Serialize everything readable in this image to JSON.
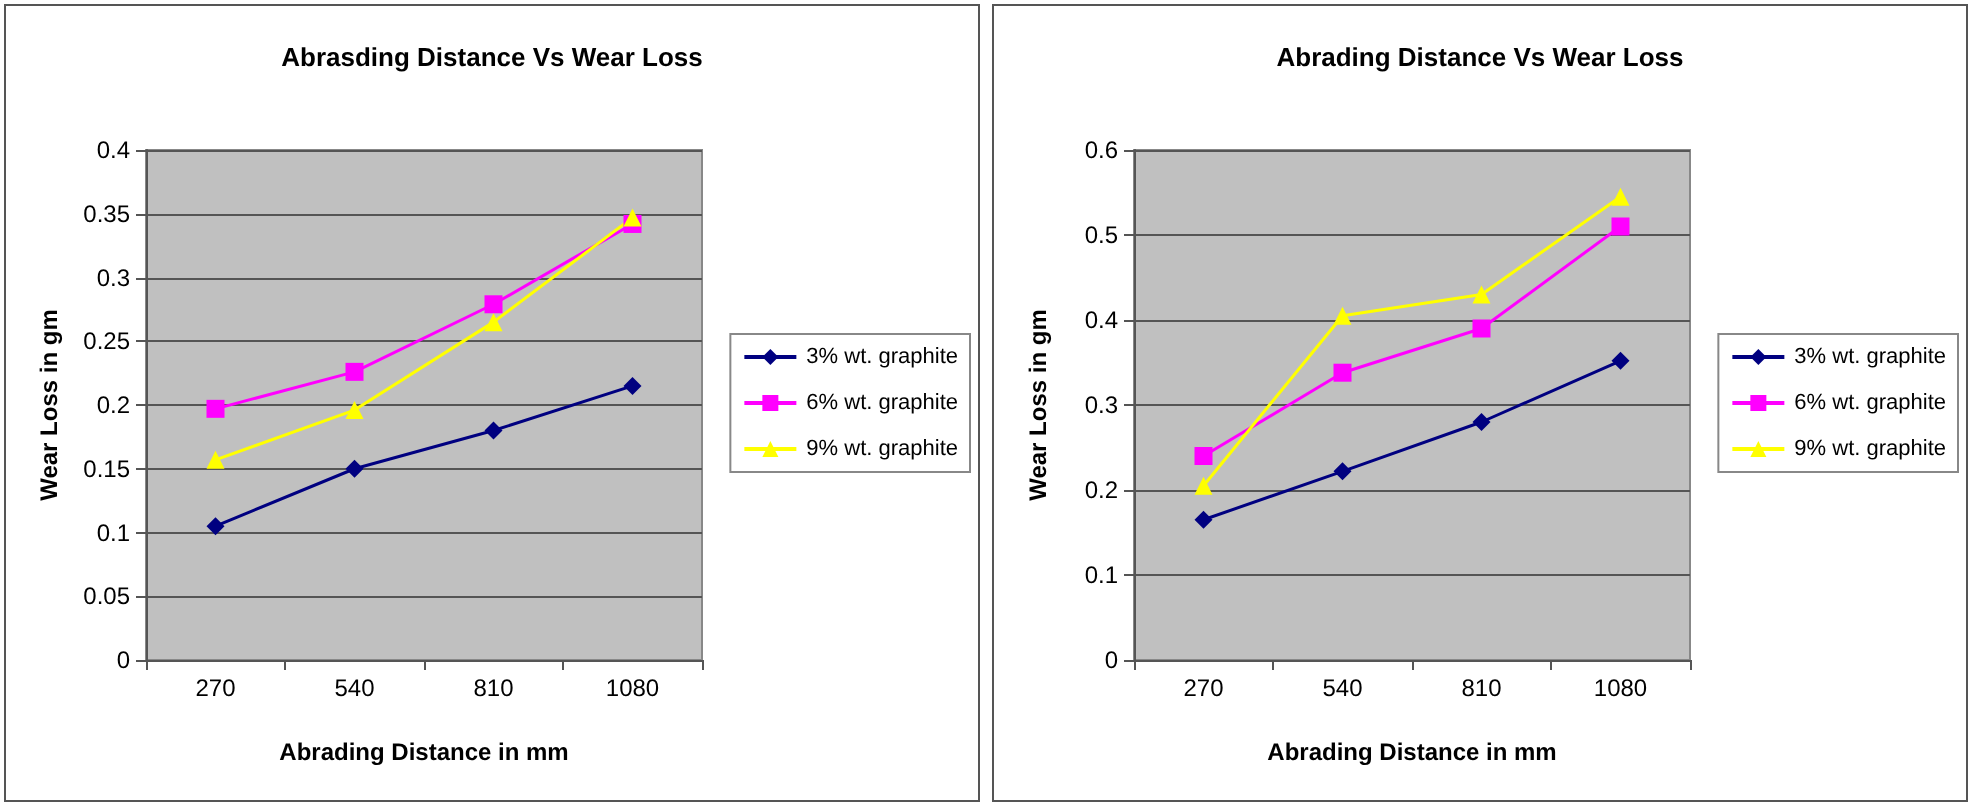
{
  "chart_data": [
    {
      "type": "line",
      "title": "Abrasding Distance Vs Wear Loss",
      "xlabel": "Abrading Distance in mm",
      "ylabel": "Wear Loss in gm",
      "categories": [
        "270",
        "540",
        "810",
        "1080"
      ],
      "series": [
        {
          "name": "3% wt. graphite",
          "color": "#000080",
          "marker": "diamond",
          "values": [
            0.105,
            0.15,
            0.18,
            0.215
          ]
        },
        {
          "name": "6% wt. graphite",
          "color": "#ff00ff",
          "marker": "square",
          "values": [
            0.197,
            0.226,
            0.279,
            0.342
          ]
        },
        {
          "name": "9% wt. graphite",
          "color": "#ffff00",
          "marker": "triangle",
          "values": [
            0.157,
            0.196,
            0.265,
            0.347
          ]
        }
      ],
      "ylim": [
        0,
        0.4
      ],
      "yticks": [
        0,
        0.05,
        0.1,
        0.15,
        0.2,
        0.25,
        0.3,
        0.35,
        0.4
      ],
      "grid": "y",
      "legend": "right"
    },
    {
      "type": "line",
      "title": "Abrading Distance Vs Wear Loss",
      "xlabel": "Abrading Distance in mm",
      "ylabel": "Wear Loss in gm",
      "categories": [
        "270",
        "540",
        "810",
        "1080"
      ],
      "series": [
        {
          "name": "3% wt. graphite",
          "color": "#000080",
          "marker": "diamond",
          "values": [
            0.165,
            0.222,
            0.28,
            0.352
          ]
        },
        {
          "name": "6% wt. graphite",
          "color": "#ff00ff",
          "marker": "square",
          "values": [
            0.24,
            0.338,
            0.39,
            0.51
          ]
        },
        {
          "name": "9% wt. graphite",
          "color": "#ffff00",
          "marker": "triangle",
          "values": [
            0.205,
            0.405,
            0.43,
            0.545
          ]
        }
      ],
      "ylim": [
        0,
        0.6
      ],
      "yticks": [
        0,
        0.1,
        0.2,
        0.3,
        0.4,
        0.5,
        0.6
      ],
      "grid": "y",
      "legend": "right"
    }
  ]
}
